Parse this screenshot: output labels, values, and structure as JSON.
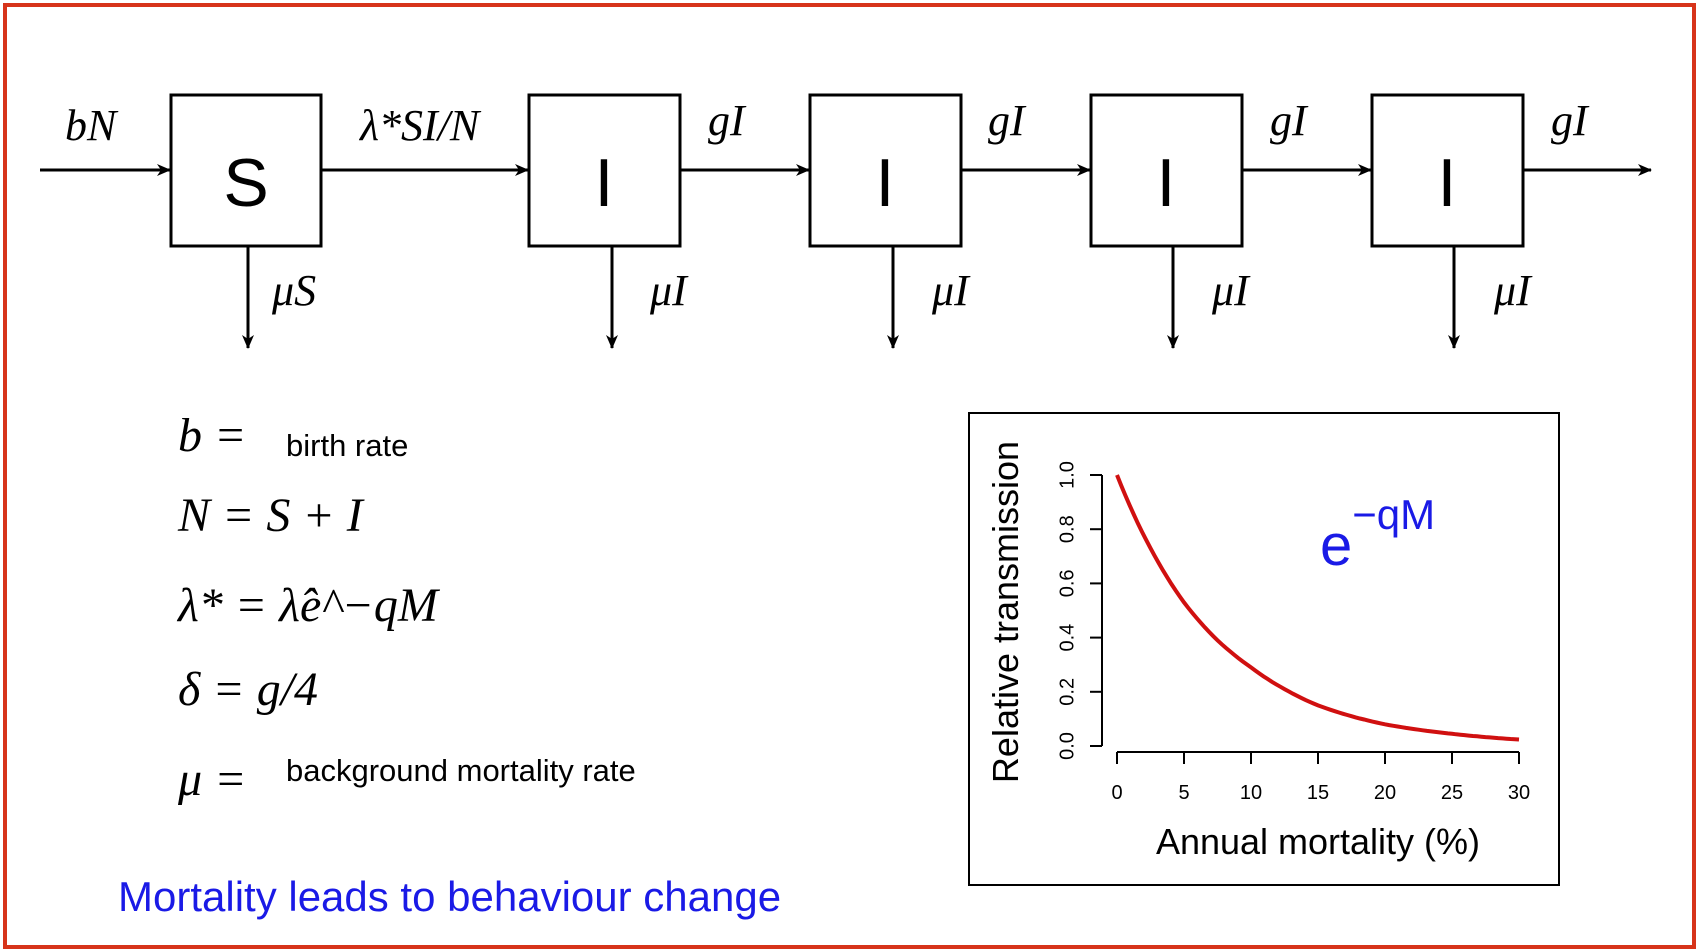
{
  "diagram": {
    "compartments": [
      "S",
      "I",
      "I",
      "I",
      "I"
    ],
    "inflow_label": "bN",
    "infection_label": "λ*SI/N",
    "progression_labels": [
      "gI",
      "gI",
      "gI",
      "gI"
    ],
    "mortality_labels": [
      "μS",
      "μI",
      "μI",
      "μI",
      "μI"
    ]
  },
  "definitions": [
    {
      "symbol": "b =",
      "text": "birth rate"
    },
    {
      "symbol": "N = S + I",
      "text": ""
    },
    {
      "symbol": "λ* = λ̂e^−qM",
      "text": ""
    },
    {
      "symbol": "δ = g/4",
      "text": ""
    },
    {
      "symbol": "μ =",
      "text": "background mortality rate"
    }
  ],
  "caption": "Mortality leads to behaviour change",
  "colors": {
    "frame": "#d7341a",
    "caption": "#1a1ae6",
    "curve": "#d01010"
  },
  "chart_data": {
    "type": "line",
    "title": "",
    "xlabel": "Annual mortality (%)",
    "ylabel": "Relative transmission",
    "annotation": "e^−qM",
    "xlim": [
      0,
      30
    ],
    "ylim": [
      0,
      1
    ],
    "xticks": [
      "0",
      "5",
      "10",
      "15",
      "20",
      "25",
      "30"
    ],
    "yticks": [
      "0.0",
      "0.2",
      "0.4",
      "0.6",
      "0.8",
      "1.0"
    ],
    "x": [
      0,
      2.5,
      5,
      7.5,
      10,
      12.5,
      15,
      17.5,
      20,
      22.5,
      25,
      27.5,
      30
    ],
    "series": [
      {
        "values": [
          1.0,
          0.73,
          0.53,
          0.39,
          0.29,
          0.21,
          0.15,
          0.11,
          0.08,
          0.06,
          0.045,
          0.033,
          0.024
        ]
      }
    ]
  }
}
